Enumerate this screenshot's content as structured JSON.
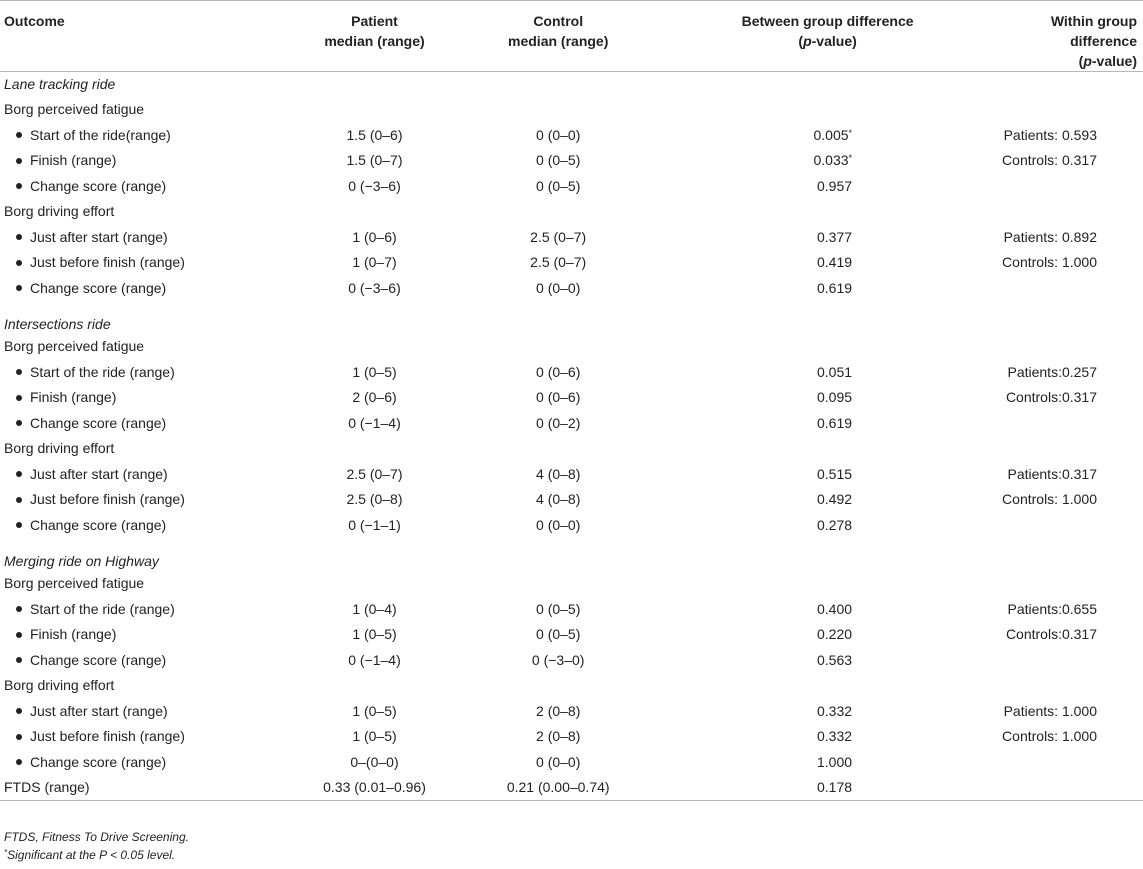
{
  "header": {
    "outcome": "Outcome",
    "patient_l1": "Patient",
    "patient_l2": "median (range)",
    "control_l1": "Control",
    "control_l2": "median (range)",
    "between_l1": "Between group difference",
    "between_l2a": "(",
    "between_l2p": "p",
    "between_l2b": "-value)",
    "within_l1": "Within group difference",
    "within_l2a": "(",
    "within_l2p": "p",
    "within_l2b": "-value)"
  },
  "rows": [
    {
      "type": "section",
      "label": "Lane tracking ride"
    },
    {
      "type": "sub",
      "label": "Borg perceived fatigue"
    },
    {
      "type": "item",
      "label": "Start of the ride(range)",
      "patient": "1.5 (0–6)",
      "control": "0 (0–0)",
      "between": "0.005",
      "sig": "*",
      "within": "Patients: 0.593"
    },
    {
      "type": "item",
      "label": "Finish (range)",
      "patient": "1.5 (0–7)",
      "control": "0 (0–5)",
      "between": "0.033",
      "sig": "*",
      "within": "Controls: 0.317"
    },
    {
      "type": "item",
      "label": "Change score (range)",
      "patient": "0 (−3–6)",
      "control": "0 (0–5)",
      "between": "0.957",
      "sig": "",
      "within": ""
    },
    {
      "type": "sub",
      "label": "Borg driving effort"
    },
    {
      "type": "item",
      "label": "Just after start (range)",
      "patient": "1 (0–6)",
      "control": "2.5 (0–7)",
      "between": "0.377",
      "sig": "",
      "within": "Patients: 0.892"
    },
    {
      "type": "item",
      "label": "Just before finish (range)",
      "patient": "1 (0–7)",
      "control": "2.5 (0–7)",
      "between": "0.419",
      "sig": "",
      "within": "Controls: 1.000"
    },
    {
      "type": "item",
      "label": "Change score (range)",
      "patient": "0 (−3–6)",
      "control": "0 (0–0)",
      "between": "0.619",
      "sig": "",
      "within": ""
    },
    {
      "type": "section",
      "label": "Intersections ride"
    },
    {
      "type": "sub",
      "label": "Borg perceived fatigue"
    },
    {
      "type": "item",
      "label": "Start of the ride (range)",
      "patient": "1 (0–5)",
      "control": "0 (0–6)",
      "between": "0.051",
      "sig": "",
      "within": "Patients:0.257"
    },
    {
      "type": "item",
      "label": "Finish (range)",
      "patient": "2 (0–6)",
      "control": "0 (0–6)",
      "between": "0.095",
      "sig": "",
      "within": "Controls:0.317"
    },
    {
      "type": "item",
      "label": "Change score (range)",
      "patient": "0 (−1–4)",
      "control": "0 (0–2)",
      "between": "0.619",
      "sig": "",
      "within": ""
    },
    {
      "type": "sub",
      "label": "Borg driving effort"
    },
    {
      "type": "item",
      "label": "Just after start (range)",
      "patient": "2.5 (0–7)",
      "control": "4 (0–8)",
      "between": "0.515",
      "sig": "",
      "within": "Patients:0.317"
    },
    {
      "type": "item",
      "label": "Just before finish (range)",
      "patient": "2.5 (0–8)",
      "control": "4 (0–8)",
      "between": "0.492",
      "sig": "",
      "within": "Controls: 1.000"
    },
    {
      "type": "item",
      "label": "Change score (range)",
      "patient": "0 (−1–1)",
      "control": "0 (0–0)",
      "between": "0.278",
      "sig": "",
      "within": ""
    },
    {
      "type": "section",
      "label": "Merging ride on Highway"
    },
    {
      "type": "sub",
      "label": "Borg perceived fatigue"
    },
    {
      "type": "item",
      "label": "Start of the ride (range)",
      "patient": "1 (0–4)",
      "control": "0 (0–5)",
      "between": "0.400",
      "sig": "",
      "within": "Patients:0.655"
    },
    {
      "type": "item",
      "label": "Finish (range)",
      "patient": "1 (0–5)",
      "control": "0 (0–5)",
      "between": "0.220",
      "sig": "",
      "within": "Controls:0.317"
    },
    {
      "type": "item",
      "label": "Change score (range)",
      "patient": "0 (−1–4)",
      "control": "0 (−3–0)",
      "between": "0.563",
      "sig": "",
      "within": ""
    },
    {
      "type": "sub",
      "label": "Borg driving effort"
    },
    {
      "type": "item",
      "label": "Just after start (range)",
      "patient": "1 (0–5)",
      "control": "2 (0–8)",
      "between": "0.332",
      "sig": "",
      "within": "Patients: 1.000"
    },
    {
      "type": "item",
      "label": "Just before finish (range)",
      "patient": "1 (0–5)",
      "control": "2 (0–8)",
      "between": "0.332",
      "sig": "",
      "within": "Controls: 1.000"
    },
    {
      "type": "item",
      "label": "Change score (range)",
      "patient": "0–(0–0)",
      "control": "0 (0–0)",
      "between": "1.000",
      "sig": "",
      "within": ""
    },
    {
      "type": "total",
      "label": "FTDS (range)",
      "patient": "0.33 (0.01–0.96)",
      "control": "0.21 (0.00–0.74)",
      "between": "0.178",
      "sig": "",
      "within": ""
    }
  ],
  "notes": {
    "abbrev": "FTDS, Fitness To Drive Screening.",
    "sig_mark": "*",
    "sig_text": "Significant at the P < 0.05 level."
  }
}
